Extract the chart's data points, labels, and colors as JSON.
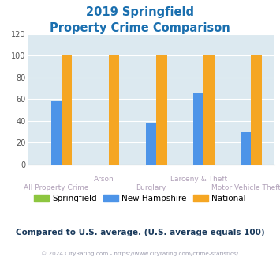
{
  "title_line1": "2019 Springfield",
  "title_line2": "Property Crime Comparison",
  "title_color": "#1a6faf",
  "categories": [
    "All Property Crime",
    "Arson",
    "Burglary",
    "Larceny & Theft",
    "Motor Vehicle Theft"
  ],
  "springfield": [
    0,
    0,
    0,
    0,
    0
  ],
  "new_hampshire": [
    58,
    0,
    38,
    66,
    30
  ],
  "national": [
    100,
    100,
    100,
    100,
    100
  ],
  "springfield_color": "#8dc63f",
  "nh_color": "#4d94e8",
  "national_color": "#f5a623",
  "ylim": [
    0,
    120
  ],
  "yticks": [
    0,
    20,
    40,
    60,
    80,
    100,
    120
  ],
  "bar_width": 0.22,
  "plot_bg": "#dce9f0",
  "xlabel_color": "#b0a0b8",
  "legend_labels": [
    "Springfield",
    "New Hampshire",
    "National"
  ],
  "footnote": "Compared to U.S. average. (U.S. average equals 100)",
  "footnote_color": "#1a3a5c",
  "copyright": "© 2024 CityRating.com - https://www.cityrating.com/crime-statistics/",
  "copyright_color": "#9e9eb0",
  "upper_labels": [
    "",
    "Arson",
    "",
    "Larceny & Theft",
    ""
  ],
  "lower_labels": [
    "All Property Crime",
    "",
    "Burglary",
    "",
    "Motor Vehicle Theft"
  ]
}
